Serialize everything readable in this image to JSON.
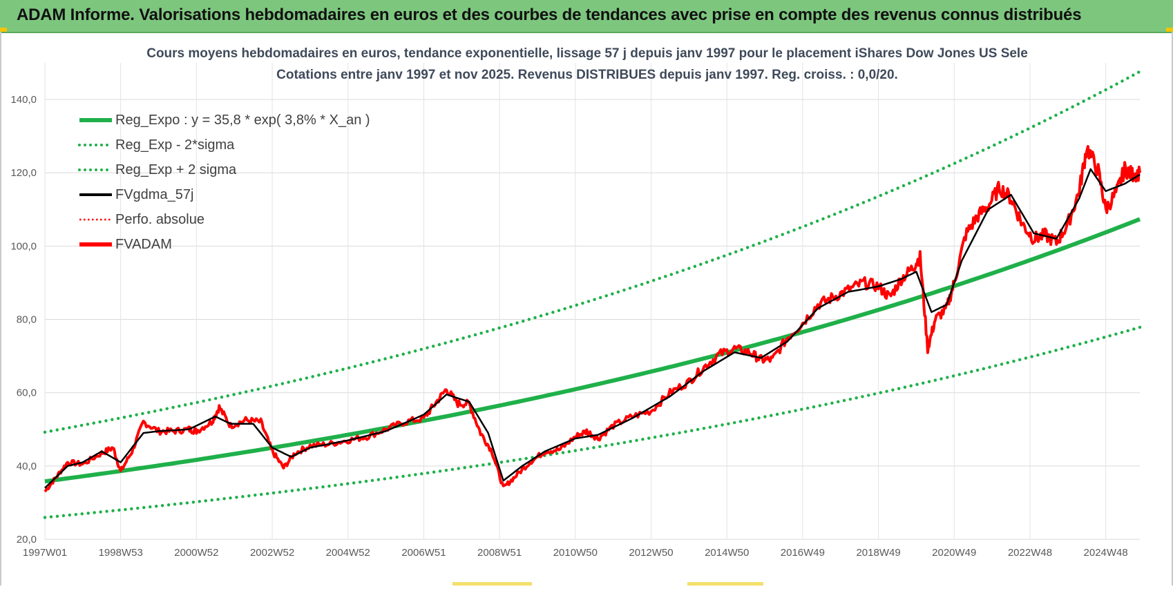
{
  "header": {
    "title": "ADAM Informe. Valorisations hebdomadaires en euros et des courbes de tendances avec prise en compte des revenus connus distribués",
    "accent_color": "#7dc67e"
  },
  "chart_data": {
    "type": "line",
    "title": "Cours moyens hebdomadaires en euros, tendance exponentielle, lissage 57 j depuis janv 1997 pour le placement iShares Dow Jones US Sele",
    "subtitle": "Cotations entre janv 1997 et nov 2025. Revenus DISTRIBUES depuis janv 1997. Reg. croiss. : 0,0/20.",
    "xlabel": "",
    "ylabel": "",
    "x_range": [
      1997.0,
      2025.9
    ],
    "ylim": [
      20,
      150
    ],
    "y_ticks": [
      "20,0",
      "40,0",
      "60,0",
      "80,0",
      "100,0",
      "120,0",
      "140,0"
    ],
    "y_tick_values": [
      20,
      40,
      60,
      80,
      100,
      120,
      140
    ],
    "x_tick_labels": [
      "1997W01",
      "1998W53",
      "2000W52",
      "2002W52",
      "2004W52",
      "2006W51",
      "2008W51",
      "2010W50",
      "2012W50",
      "2014W50",
      "2016W49",
      "2018W49",
      "2020W49",
      "2022W48",
      "2024W48"
    ],
    "x_tick_values": [
      1997.0,
      1999.0,
      2001.0,
      2003.0,
      2005.0,
      2007.0,
      2009.0,
      2011.0,
      2013.0,
      2015.0,
      2017.0,
      2019.0,
      2021.0,
      2023.0,
      2025.0
    ],
    "grid": true,
    "legend_position": "top-left",
    "regression": {
      "a": 35.8,
      "rate": 0.038,
      "lower_factor": 0.725,
      "upper_factor": 1.375
    },
    "series": [
      {
        "name": "Reg_Expo : y = 35,8 * exp( 3,8% *  X_an )",
        "color": "#1fb04a",
        "style": "solid-thick"
      },
      {
        "name": "Reg_Exp - 2*sigma",
        "color": "#1fb04a",
        "style": "dotted"
      },
      {
        "name": "Reg_Exp + 2 sigma",
        "color": "#1fb04a",
        "style": "dotted"
      },
      {
        "name": "FVgdma_57j",
        "color": "#000000",
        "style": "solid"
      },
      {
        "name": "Perfo. absolue",
        "color": "#ff0000",
        "style": "dotted-thin"
      },
      {
        "name": "FVADAM",
        "color": "#ff0000",
        "style": "solid-thick",
        "x": [
          1997.0,
          1997.3,
          1997.6,
          1998.0,
          1998.5,
          1998.8,
          1999.0,
          1999.3,
          1999.6,
          2000.0,
          2000.4,
          2000.8,
          2001.0,
          2001.4,
          2001.6,
          2001.9,
          2002.3,
          2002.7,
          2003.0,
          2003.3,
          2003.6,
          2004.0,
          2004.5,
          2005.0,
          2005.5,
          2006.0,
          2006.5,
          2007.0,
          2007.3,
          2007.6,
          2007.9,
          2008.2,
          2008.5,
          2008.8,
          2009.1,
          2009.4,
          2009.8,
          2010.2,
          2010.6,
          2011.0,
          2011.3,
          2011.6,
          2012.0,
          2012.5,
          2013.0,
          2013.5,
          2014.0,
          2014.4,
          2014.8,
          2015.2,
          2015.6,
          2015.9,
          2016.2,
          2016.6,
          2017.0,
          2017.4,
          2017.8,
          2018.2,
          2018.6,
          2019.0,
          2019.3,
          2019.6,
          2019.9,
          2020.1,
          2020.3,
          2020.5,
          2020.8,
          2021.0,
          2021.3,
          2021.6,
          2021.9,
          2022.2,
          2022.5,
          2022.8,
          2023.1,
          2023.4,
          2023.7,
          2024.0,
          2024.3,
          2024.5,
          2024.8,
          2025.0,
          2025.3,
          2025.5,
          2025.7,
          2025.9
        ],
        "values": [
          33.0,
          37.0,
          41.0,
          40.5,
          43.5,
          45.0,
          38.5,
          44.0,
          52.0,
          49.5,
          49.5,
          50.0,
          49.5,
          52.0,
          56.0,
          51.0,
          52.5,
          52.0,
          44.0,
          39.5,
          43.5,
          45.5,
          46.0,
          47.0,
          48.0,
          50.0,
          52.0,
          53.0,
          57.0,
          61.0,
          57.0,
          57.0,
          49.0,
          44.0,
          34.0,
          37.0,
          41.0,
          44.0,
          44.5,
          48.0,
          49.5,
          47.5,
          51.0,
          53.5,
          55.0,
          60.0,
          63.0,
          67.0,
          70.5,
          72.0,
          71.0,
          69.0,
          69.0,
          75.0,
          79.0,
          84.0,
          86.0,
          88.0,
          90.0,
          89.0,
          86.0,
          91.0,
          94.0,
          97.0,
          72.0,
          80.0,
          83.0,
          90.0,
          103.0,
          108.0,
          111.0,
          116.0,
          113.0,
          106.0,
          102.0,
          103.0,
          101.0,
          106.0,
          115.0,
          127.0,
          120.5,
          110.0,
          115.0,
          121.0,
          119.5,
          120.0
        ]
      },
      {
        "name": "FVgdma_57j",
        "color": "#000000",
        "style": "solid",
        "x": [
          1997.0,
          1997.6,
          1998.0,
          1998.5,
          1999.0,
          1999.6,
          2000.0,
          2000.8,
          2001.5,
          2001.9,
          2002.5,
          2003.0,
          2003.5,
          2004.0,
          2005.0,
          2006.0,
          2007.0,
          2007.6,
          2008.2,
          2008.7,
          2009.1,
          2009.6,
          2010.2,
          2011.0,
          2011.6,
          2012.5,
          2013.5,
          2014.4,
          2015.2,
          2015.9,
          2016.6,
          2017.4,
          2018.2,
          2019.0,
          2019.6,
          2020.0,
          2020.4,
          2020.8,
          2021.2,
          2021.9,
          2022.5,
          2023.1,
          2023.7,
          2024.3,
          2024.6,
          2025.0,
          2025.5,
          2025.9
        ],
        "values": [
          34.0,
          40.0,
          41.0,
          44.0,
          41.0,
          49.0,
          49.5,
          50.0,
          53.5,
          51.5,
          51.5,
          45.0,
          42.5,
          45.0,
          47.0,
          49.5,
          54.0,
          59.5,
          57.5,
          49.0,
          36.0,
          40.0,
          44.0,
          47.5,
          48.5,
          53.0,
          59.0,
          66.0,
          71.0,
          69.5,
          74.0,
          83.0,
          87.5,
          89.0,
          91.0,
          93.0,
          82.0,
          84.0,
          96.0,
          110.0,
          114.0,
          103.5,
          102.0,
          113.0,
          121.0,
          115.0,
          117.0,
          119.5
        ]
      }
    ]
  }
}
